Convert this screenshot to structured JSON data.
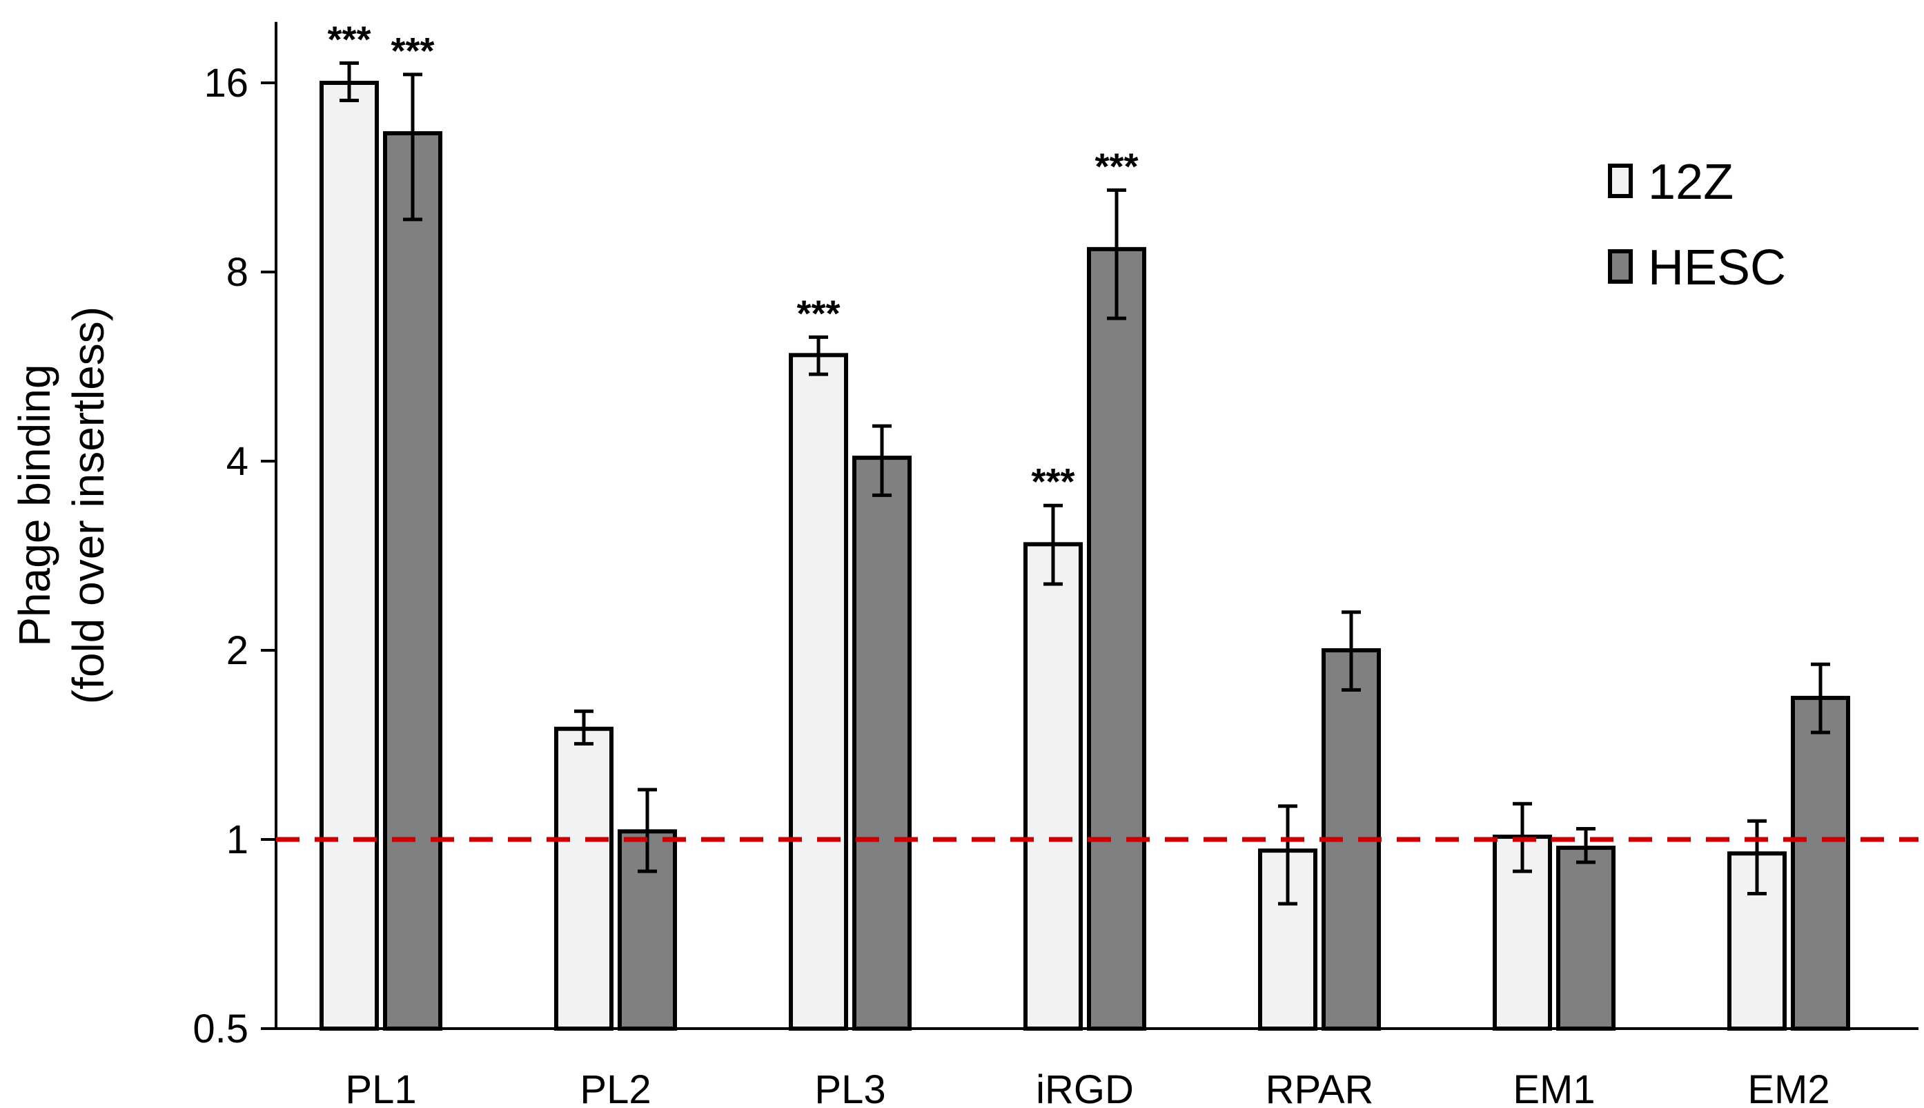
{
  "chart_data": {
    "type": "bar",
    "title": "",
    "xlabel": "",
    "ylabel_line1": "Phage binding",
    "ylabel_line2": "(fold over insertless)",
    "yscale": "log2",
    "ylim": [
      0.5,
      20
    ],
    "yticks": [
      0.5,
      1,
      2,
      4,
      8,
      16
    ],
    "ytick_labels": [
      "0.5",
      "1",
      "2",
      "4",
      "8",
      "16"
    ],
    "reference_line": {
      "value": 1,
      "style": "dashed",
      "color": "#cc0000"
    },
    "categories": [
      "PL1",
      "PL2",
      "PL3",
      "iRGD",
      "RPAR",
      "EM1",
      "EM2"
    ],
    "series": [
      {
        "name": "12Z",
        "color": "#f2f2f2",
        "values": [
          16.0,
          1.5,
          5.9,
          2.95,
          0.96,
          1.01,
          0.95
        ],
        "err_low": [
          15.0,
          1.42,
          5.5,
          2.55,
          0.79,
          0.89,
          0.82
        ],
        "err_high": [
          17.2,
          1.6,
          6.3,
          3.4,
          1.13,
          1.14,
          1.07
        ],
        "significance": [
          "***",
          "",
          "***",
          "***",
          "",
          "",
          ""
        ]
      },
      {
        "name": "HESC",
        "color": "#808080",
        "values": [
          13.3,
          1.03,
          4.05,
          8.7,
          2.0,
          0.97,
          1.68
        ],
        "err_low": [
          9.7,
          0.89,
          3.53,
          6.75,
          1.73,
          0.92,
          1.48
        ],
        "err_high": [
          16.5,
          1.2,
          4.55,
          10.8,
          2.3,
          1.04,
          1.9
        ],
        "significance": [
          "***",
          "",
          "",
          "***",
          "",
          "",
          ""
        ]
      }
    ],
    "legend": {
      "position": "top-right",
      "entries": [
        "12Z",
        "HESC"
      ]
    }
  }
}
